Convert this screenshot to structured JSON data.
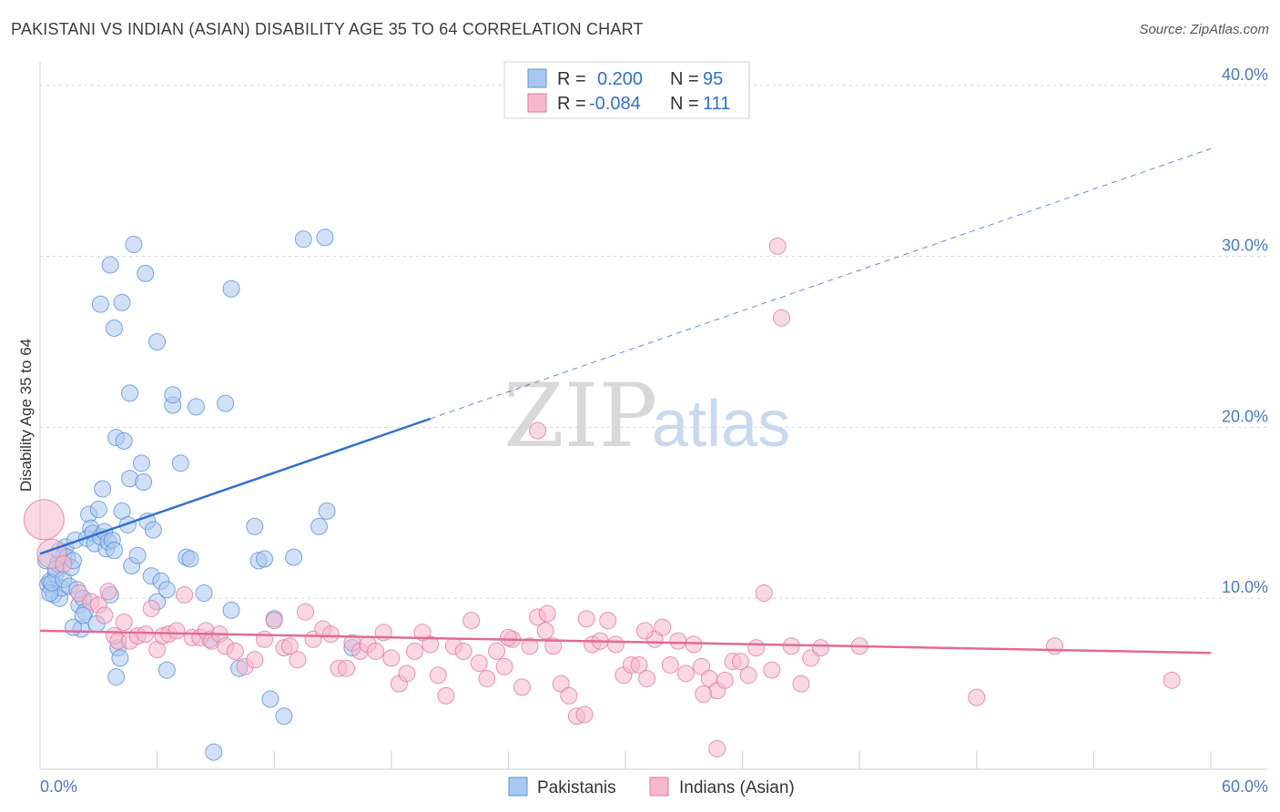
{
  "title": "PAKISTANI VS INDIAN (ASIAN) DISABILITY AGE 35 TO 64 CORRELATION CHART",
  "source": "Source: ZipAtlas.com",
  "watermark": {
    "zip": "ZIP",
    "atlas": "atlas"
  },
  "colors": {
    "blue_fill": "#a9c8f0",
    "blue_stroke": "#5b8fd8",
    "blue_line": "#2f6fd0",
    "pink_fill": "#f5b8cc",
    "pink_stroke": "#e07aa0",
    "pink_line": "#e06a94",
    "grid": "#d6d6d6",
    "axis_text": "#4a78c8"
  },
  "legend": {
    "rows": [
      {
        "r_label": "R =",
        "r_value": "0.200",
        "n_label": "N =",
        "n_value": "95"
      },
      {
        "r_label": "R =",
        "r_value": "-0.084",
        "n_label": "N =",
        "n_value": "111"
      }
    ]
  },
  "bottom_legend": [
    "Pakistanis",
    "Indians (Asian)"
  ],
  "chart_data": {
    "type": "scatter",
    "title": "PAKISTANI VS INDIAN (ASIAN) DISABILITY AGE 35 TO 64 CORRELATION CHART",
    "xlabel": "",
    "ylabel": "Disability Age 35 to 64",
    "xlim": [
      0,
      60
    ],
    "ylim": [
      0,
      41
    ],
    "x_tick_labels": [
      "0.0%",
      "60.0%"
    ],
    "y_ticks": [
      10,
      20,
      30,
      40
    ],
    "y_tick_labels": [
      "10.0%",
      "20.0%",
      "30.0%",
      "40.0%"
    ],
    "series": [
      {
        "name": "Pakistanis",
        "R": 0.2,
        "N": 95,
        "trend": {
          "solid": [
            [
              0,
              12.6
            ],
            [
              20,
              20.5
            ]
          ],
          "dashed": [
            [
              20,
              20.5
            ],
            [
              60,
              36.3
            ]
          ]
        },
        "points": [
          [
            0.3,
            12.2
          ],
          [
            0.4,
            10.8
          ],
          [
            0.5,
            11.0
          ],
          [
            0.6,
            10.5
          ],
          [
            0.7,
            10.2
          ],
          [
            0.8,
            11.4
          ],
          [
            0.9,
            12.0
          ],
          [
            1.0,
            10.0
          ],
          [
            1.1,
            10.6
          ],
          [
            1.2,
            12.5
          ],
          [
            0.5,
            10.3
          ],
          [
            0.6,
            10.9
          ],
          [
            0.8,
            11.7
          ],
          [
            1.0,
            12.8
          ],
          [
            1.2,
            11.1
          ],
          [
            1.3,
            13.0
          ],
          [
            1.4,
            12.4
          ],
          [
            1.5,
            10.7
          ],
          [
            1.6,
            11.8
          ],
          [
            1.7,
            12.2
          ],
          [
            1.8,
            13.4
          ],
          [
            1.9,
            10.5
          ],
          [
            2.0,
            9.6
          ],
          [
            2.1,
            8.2
          ],
          [
            2.2,
            10.0
          ],
          [
            2.3,
            9.2
          ],
          [
            2.4,
            13.5
          ],
          [
            2.5,
            14.9
          ],
          [
            2.6,
            14.1
          ],
          [
            2.7,
            13.8
          ],
          [
            2.8,
            13.2
          ],
          [
            2.9,
            8.5
          ],
          [
            3.0,
            15.2
          ],
          [
            3.1,
            13.6
          ],
          [
            3.2,
            16.4
          ],
          [
            3.3,
            13.9
          ],
          [
            3.4,
            12.9
          ],
          [
            3.5,
            13.3
          ],
          [
            3.6,
            10.2
          ],
          [
            3.7,
            13.4
          ],
          [
            3.8,
            12.8
          ],
          [
            3.9,
            19.4
          ],
          [
            4.0,
            7.1
          ],
          [
            4.1,
            6.5
          ],
          [
            4.2,
            15.1
          ],
          [
            4.3,
            19.2
          ],
          [
            4.5,
            14.3
          ],
          [
            4.6,
            17.0
          ],
          [
            4.7,
            11.9
          ],
          [
            5.0,
            12.5
          ],
          [
            5.2,
            17.9
          ],
          [
            5.3,
            16.8
          ],
          [
            5.5,
            14.5
          ],
          [
            5.7,
            11.3
          ],
          [
            5.8,
            14.0
          ],
          [
            6.0,
            9.8
          ],
          [
            6.2,
            11.0
          ],
          [
            6.5,
            10.5
          ],
          [
            6.8,
            21.3
          ],
          [
            7.2,
            17.9
          ],
          [
            7.5,
            12.4
          ],
          [
            7.7,
            12.3
          ],
          [
            8.0,
            21.2
          ],
          [
            8.4,
            10.3
          ],
          [
            9.5,
            21.4
          ],
          [
            9.8,
            9.3
          ],
          [
            10.2,
            5.9
          ],
          [
            11.0,
            14.2
          ],
          [
            11.2,
            12.2
          ],
          [
            11.5,
            12.3
          ],
          [
            12.0,
            8.8
          ],
          [
            12.5,
            3.1
          ],
          [
            13.0,
            12.4
          ],
          [
            14.3,
            14.2
          ],
          [
            3.1,
            27.2
          ],
          [
            4.2,
            27.3
          ],
          [
            3.8,
            25.8
          ],
          [
            3.6,
            29.5
          ],
          [
            5.4,
            29.0
          ],
          [
            4.8,
            30.7
          ],
          [
            9.8,
            28.1
          ],
          [
            13.5,
            31.0
          ],
          [
            14.6,
            31.1
          ],
          [
            4.6,
            22.0
          ],
          [
            6.0,
            25.0
          ],
          [
            6.8,
            21.9
          ],
          [
            14.7,
            15.1
          ],
          [
            6.5,
            5.8
          ],
          [
            3.9,
            5.4
          ],
          [
            8.7,
            7.6
          ],
          [
            8.9,
            1.0
          ],
          [
            11.8,
            4.1
          ],
          [
            1.7,
            8.3
          ],
          [
            2.2,
            9.0
          ],
          [
            16.0,
            7.1
          ]
        ]
      },
      {
        "name": "Indians (Asian)",
        "R": -0.084,
        "N": 111,
        "trend": {
          "solid": [
            [
              0,
              8.1
            ],
            [
              60,
              6.8
            ]
          ]
        },
        "points": [
          [
            0.2,
            14.6
          ],
          [
            0.6,
            12.6
          ],
          [
            1.2,
            12.0
          ],
          [
            2.0,
            10.3
          ],
          [
            2.6,
            9.8
          ],
          [
            3.0,
            9.6
          ],
          [
            3.3,
            9.0
          ],
          [
            3.5,
            10.4
          ],
          [
            3.8,
            7.8
          ],
          [
            4.0,
            7.5
          ],
          [
            4.3,
            8.6
          ],
          [
            4.6,
            7.5
          ],
          [
            5.0,
            7.8
          ],
          [
            5.4,
            7.9
          ],
          [
            5.7,
            9.4
          ],
          [
            6.0,
            7.0
          ],
          [
            6.3,
            7.8
          ],
          [
            6.6,
            7.9
          ],
          [
            7.0,
            8.1
          ],
          [
            7.4,
            10.2
          ],
          [
            7.8,
            7.7
          ],
          [
            8.2,
            7.7
          ],
          [
            8.5,
            8.1
          ],
          [
            8.8,
            7.5
          ],
          [
            9.2,
            7.9
          ],
          [
            9.5,
            7.2
          ],
          [
            10.0,
            6.9
          ],
          [
            10.5,
            6.0
          ],
          [
            11.0,
            6.4
          ],
          [
            11.5,
            7.6
          ],
          [
            12.0,
            8.7
          ],
          [
            12.5,
            7.1
          ],
          [
            12.8,
            7.2
          ],
          [
            13.2,
            6.4
          ],
          [
            13.6,
            9.2
          ],
          [
            14.0,
            7.6
          ],
          [
            14.5,
            8.2
          ],
          [
            14.9,
            7.9
          ],
          [
            15.3,
            5.9
          ],
          [
            15.7,
            5.9
          ],
          [
            16.0,
            7.4
          ],
          [
            16.4,
            6.9
          ],
          [
            16.8,
            7.3
          ],
          [
            17.2,
            6.9
          ],
          [
            17.6,
            8.0
          ],
          [
            18.0,
            6.5
          ],
          [
            18.4,
            5.0
          ],
          [
            18.8,
            5.6
          ],
          [
            19.2,
            6.9
          ],
          [
            19.6,
            8.0
          ],
          [
            20.0,
            7.3
          ],
          [
            20.4,
            5.5
          ],
          [
            20.8,
            4.3
          ],
          [
            21.2,
            7.2
          ],
          [
            21.7,
            6.9
          ],
          [
            22.1,
            8.7
          ],
          [
            22.5,
            6.2
          ],
          [
            22.9,
            5.3
          ],
          [
            23.4,
            6.9
          ],
          [
            23.8,
            6.0
          ],
          [
            24.2,
            7.6
          ],
          [
            24.7,
            4.8
          ],
          [
            25.1,
            7.2
          ],
          [
            25.5,
            8.9
          ],
          [
            25.9,
            8.1
          ],
          [
            26.3,
            7.2
          ],
          [
            26.7,
            5.0
          ],
          [
            27.1,
            4.3
          ],
          [
            27.5,
            3.1
          ],
          [
            27.9,
            3.2
          ],
          [
            28.3,
            7.3
          ],
          [
            28.7,
            7.5
          ],
          [
            29.1,
            8.7
          ],
          [
            29.5,
            7.3
          ],
          [
            29.9,
            5.5
          ],
          [
            30.3,
            6.1
          ],
          [
            30.7,
            6.1
          ],
          [
            31.1,
            5.3
          ],
          [
            31.5,
            7.6
          ],
          [
            31.9,
            8.3
          ],
          [
            32.3,
            6.1
          ],
          [
            32.7,
            7.5
          ],
          [
            33.1,
            5.6
          ],
          [
            33.5,
            7.3
          ],
          [
            33.9,
            6.0
          ],
          [
            34.3,
            5.3
          ],
          [
            34.7,
            4.6
          ],
          [
            35.1,
            5.2
          ],
          [
            35.5,
            6.3
          ],
          [
            35.9,
            6.3
          ],
          [
            36.3,
            5.5
          ],
          [
            36.7,
            7.1
          ],
          [
            37.1,
            10.3
          ],
          [
            37.5,
            5.8
          ],
          [
            38.0,
            26.4
          ],
          [
            38.5,
            7.2
          ],
          [
            39.0,
            5.0
          ],
          [
            39.5,
            6.5
          ],
          [
            40.0,
            7.1
          ],
          [
            26.0,
            9.1
          ],
          [
            28.0,
            8.8
          ],
          [
            24.0,
            7.7
          ],
          [
            34.7,
            1.2
          ],
          [
            42.0,
            7.2
          ],
          [
            48.0,
            4.2
          ],
          [
            52.0,
            7.2
          ],
          [
            58.0,
            5.2
          ],
          [
            34.0,
            4.4
          ],
          [
            37.8,
            30.6
          ],
          [
            25.5,
            19.8
          ],
          [
            31.0,
            8.1
          ]
        ]
      }
    ]
  }
}
